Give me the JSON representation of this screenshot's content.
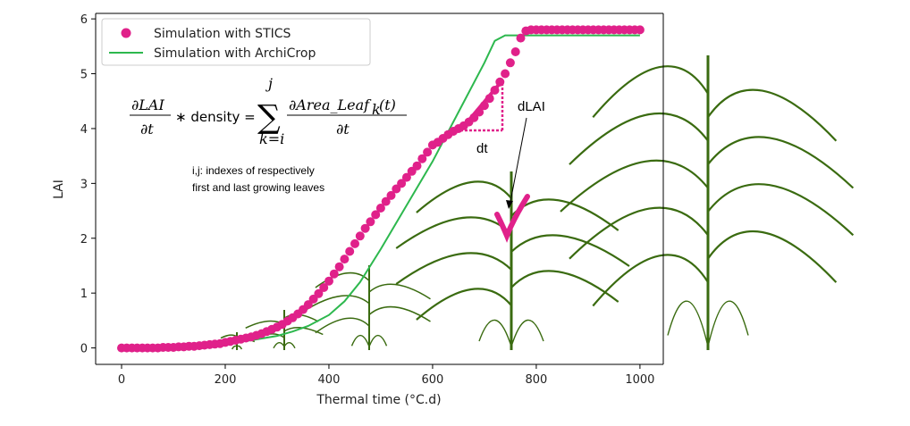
{
  "chart_data": {
    "type": "scatter",
    "xlabel": "Thermal time (°C.d)",
    "ylabel": "LAI",
    "xlim": [
      -50,
      1045
    ],
    "ylim": [
      -0.3,
      6.1
    ],
    "xticks": [
      0,
      200,
      400,
      600,
      800,
      1000
    ],
    "yticks": [
      0,
      1,
      2,
      3,
      4,
      5,
      6
    ],
    "legend_position": "top-left",
    "series": [
      {
        "name": "Simulation with STICS",
        "kind": "scatter",
        "color": "#e0218a",
        "x": [
          0,
          10,
          20,
          30,
          40,
          50,
          60,
          70,
          80,
          90,
          100,
          110,
          120,
          130,
          140,
          150,
          160,
          170,
          180,
          190,
          200,
          210,
          220,
          230,
          240,
          250,
          260,
          270,
          280,
          290,
          300,
          310,
          320,
          330,
          340,
          350,
          360,
          370,
          380,
          390,
          400,
          410,
          420,
          430,
          440,
          450,
          460,
          470,
          480,
          490,
          500,
          510,
          520,
          530,
          540,
          550,
          560,
          570,
          580,
          590,
          600,
          610,
          620,
          630,
          640,
          650,
          660,
          670,
          680,
          690,
          700,
          710,
          720,
          730,
          740,
          750,
          760,
          770,
          780,
          790,
          800,
          810,
          820,
          830,
          840,
          850,
          860,
          870,
          880,
          890,
          900,
          910,
          920,
          930,
          940,
          950,
          960,
          970,
          980,
          990,
          1000
        ],
        "y": [
          0.0,
          0.0,
          0.0,
          0.0,
          0.0,
          0.0,
          0.0,
          0.0,
          0.01,
          0.01,
          0.01,
          0.02,
          0.02,
          0.03,
          0.03,
          0.04,
          0.05,
          0.06,
          0.07,
          0.08,
          0.1,
          0.12,
          0.14,
          0.16,
          0.18,
          0.2,
          0.23,
          0.26,
          0.3,
          0.34,
          0.38,
          0.43,
          0.49,
          0.55,
          0.62,
          0.7,
          0.79,
          0.89,
          0.99,
          1.1,
          1.22,
          1.35,
          1.48,
          1.62,
          1.76,
          1.9,
          2.04,
          2.18,
          2.3,
          2.43,
          2.55,
          2.67,
          2.78,
          2.9,
          3.0,
          3.11,
          3.22,
          3.32,
          3.45,
          3.57,
          3.7,
          3.75,
          3.82,
          3.89,
          3.95,
          4.0,
          4.05,
          4.12,
          4.2,
          4.3,
          4.42,
          4.55,
          4.7,
          4.85,
          5.0,
          5.2,
          5.4,
          5.65,
          5.78,
          5.8,
          5.8,
          5.8,
          5.8,
          5.8,
          5.8,
          5.8,
          5.8,
          5.8,
          5.8,
          5.8,
          5.8,
          5.8,
          5.8,
          5.8,
          5.8,
          5.8,
          5.8,
          5.8,
          5.8,
          5.8,
          5.8
        ]
      },
      {
        "name": "Simulation with ArchiCrop",
        "kind": "line",
        "color": "#2db84e",
        "x": [
          0,
          50,
          100,
          150,
          200,
          250,
          300,
          330,
          360,
          400,
          430,
          460,
          500,
          550,
          600,
          650,
          700,
          720,
          740,
          760,
          780,
          800,
          1000
        ],
        "y": [
          0.0,
          0.0,
          0.01,
          0.04,
          0.08,
          0.14,
          0.22,
          0.3,
          0.4,
          0.6,
          0.85,
          1.2,
          1.8,
          2.6,
          3.4,
          4.3,
          5.2,
          5.6,
          5.7,
          5.7,
          5.7,
          5.7,
          5.7
        ]
      }
    ],
    "annotations": {
      "eq_lhs_num": "∂LAI",
      "eq_lhs_den": "∂t",
      "eq_times": "∗ density =",
      "eq_sum_top": "j",
      "eq_sum_bottom": "k=i",
      "eq_rhs_num": "∂Area_Leaf",
      "eq_rhs_sub": "k",
      "eq_rhs_arg": "(t)",
      "eq_rhs_den": "∂t",
      "indexes_line1": "i,j: indexes of respectively",
      "indexes_line2": "first and last growing leaves",
      "dt_label": "dt",
      "dlai_label": "dLAI"
    },
    "colors": {
      "stics": "#e0218a",
      "archicrop": "#2db84e",
      "plant": "#3a6b10"
    }
  }
}
